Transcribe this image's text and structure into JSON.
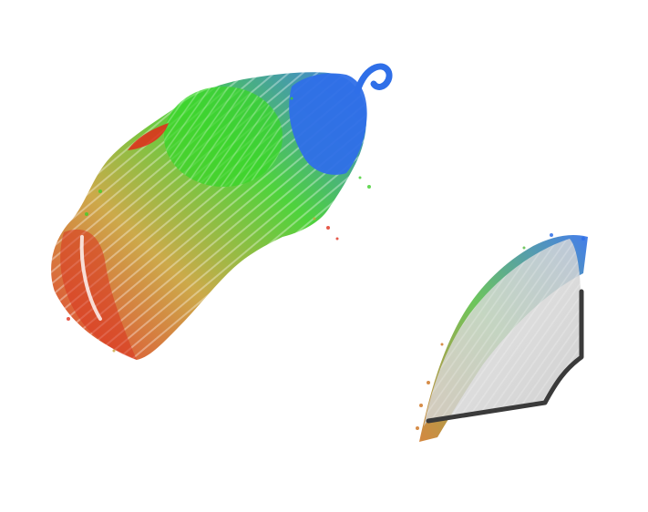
{
  "scene": {
    "background": "#ffffff",
    "objects": [
      {
        "name": "left-point-cloud",
        "colors": [
          "#e0301e",
          "#c8a23a",
          "#3fcf2b",
          "#2f6fe8"
        ]
      },
      {
        "name": "right-fan-surface",
        "colors": [
          "#d07a2a",
          "#5cbf49",
          "#2f6fe8",
          "#d6d6d6",
          "#3a3a3a"
        ]
      }
    ]
  }
}
